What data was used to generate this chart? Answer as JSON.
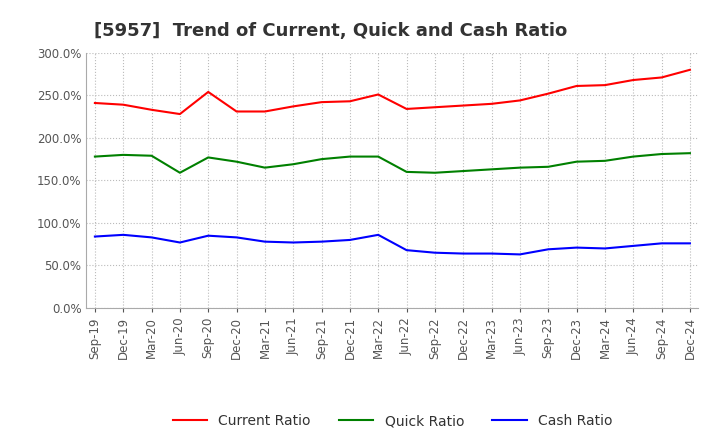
{
  "title": "[5957]  Trend of Current, Quick and Cash Ratio",
  "x_labels": [
    "Sep-19",
    "Dec-19",
    "Mar-20",
    "Jun-20",
    "Sep-20",
    "Dec-20",
    "Mar-21",
    "Jun-21",
    "Sep-21",
    "Dec-21",
    "Mar-22",
    "Jun-22",
    "Sep-22",
    "Dec-22",
    "Mar-23",
    "Jun-23",
    "Sep-23",
    "Dec-23",
    "Mar-24",
    "Jun-24",
    "Sep-24",
    "Dec-24"
  ],
  "current_ratio": [
    241,
    239,
    233,
    228,
    254,
    231,
    231,
    237,
    242,
    243,
    251,
    234,
    236,
    238,
    240,
    244,
    252,
    261,
    262,
    268,
    271,
    280
  ],
  "quick_ratio": [
    178,
    180,
    179,
    159,
    177,
    172,
    165,
    169,
    175,
    178,
    178,
    160,
    159,
    161,
    163,
    165,
    166,
    172,
    173,
    178,
    181,
    182
  ],
  "cash_ratio": [
    84,
    86,
    83,
    77,
    85,
    83,
    78,
    77,
    78,
    80,
    86,
    68,
    65,
    64,
    64,
    63,
    69,
    71,
    70,
    73,
    76,
    76
  ],
  "ylim": [
    0,
    300
  ],
  "yticks": [
    0,
    50,
    100,
    150,
    200,
    250,
    300
  ],
  "current_color": "#ff0000",
  "quick_color": "#008000",
  "cash_color": "#0000ff",
  "bg_color": "#ffffff",
  "grid_color": "#bbbbbb",
  "title_fontsize": 13,
  "axis_fontsize": 8.5,
  "legend_fontsize": 10
}
